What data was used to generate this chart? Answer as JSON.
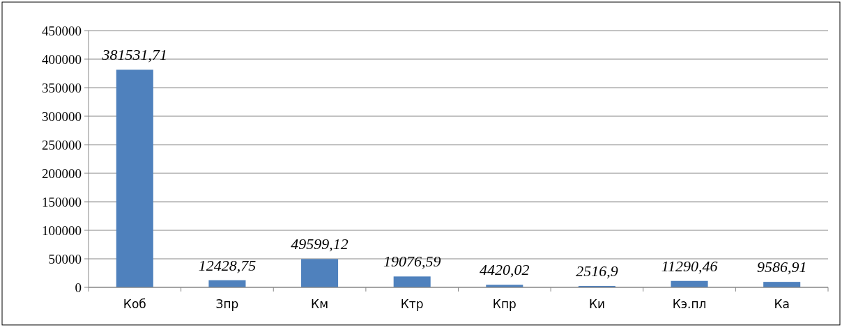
{
  "chart_data": {
    "type": "bar",
    "categories": [
      "Коб",
      "Зпр",
      "Км",
      "Ктр",
      "Кпр",
      "Ки",
      "Кэ.пл",
      "Ка"
    ],
    "values": [
      381531.71,
      12428.75,
      49599.12,
      19076.59,
      4420.02,
      2516.9,
      11290.46,
      9586.91
    ],
    "value_labels": [
      "381531,71",
      "12428,75",
      "49599,12",
      "19076,59",
      "4420,02",
      "2516,9",
      "11290,46",
      "9586,91"
    ],
    "color": "#4f81bd",
    "ylim": [
      0,
      450000
    ],
    "yticks": [
      0,
      50000,
      100000,
      150000,
      200000,
      250000,
      300000,
      350000,
      400000,
      450000
    ],
    "grid": "y"
  }
}
